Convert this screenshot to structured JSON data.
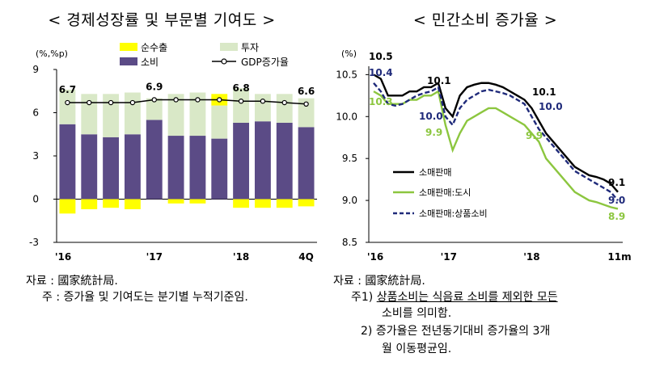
{
  "left_chart": {
    "title": "< 경제성장률 및 부문별 기여도 >",
    "unit": "(%,%p)",
    "legend": {
      "net_exports": "순수출",
      "investment": "투자",
      "consumption": "소비",
      "gdp": "GDP증가율"
    },
    "x_tick_labels": [
      "'16",
      "'17",
      "'18",
      "4Q"
    ],
    "y_tick_labels": [
      "9",
      "6",
      "3",
      "0",
      "-3"
    ],
    "gdp_labels": [
      "6.7",
      "6.9",
      "6.8",
      "6.6"
    ],
    "source": "자료 : 國家統計局.",
    "note": "주 : 증가율 및 기여도는 분기별 누적기준임."
  },
  "right_chart": {
    "title": "< 민간소비 증가율 >",
    "unit": "(%)",
    "legend": {
      "retail": "소매판매",
      "urban": "소매판매:도시",
      "goods": "소매판매:상품소비"
    },
    "x_tick_labels": [
      "'16",
      "'17",
      "'18",
      "11m"
    ],
    "y_tick_labels": [
      "10.5",
      "10.0",
      "9.5",
      "9.0",
      "8.5"
    ],
    "source": "자료 : 國家統計局.",
    "note1_prefix": "주1) ",
    "note1_line1": "상품소비는 식음료 소비를 제외한 모든",
    "note1_line2": "소비를 의미함.",
    "note2_prefix": "2) ",
    "note2_line1": "증가율은 전년동기대비 증가율의 3개",
    "note2_line2": "월 이동평균임."
  },
  "chart_data": [
    {
      "type": "bar",
      "title": "< 경제성장률 및 부문별 기여도 >",
      "ylabel": "(%,%p)",
      "ylim": [
        -3,
        9
      ],
      "yticks": [
        -3,
        0,
        3,
        6,
        9
      ],
      "x_tick_labels": [
        "'16",
        "'17",
        "'18",
        "4Q"
      ],
      "categories": [
        "16Q1",
        "16Q2",
        "16Q3",
        "16Q4",
        "17Q1",
        "17Q2",
        "17Q3",
        "17Q4",
        "18Q1",
        "18Q2",
        "18Q3",
        "18Q4"
      ],
      "stacked": true,
      "colors": {
        "consumption": "#5b4b86",
        "investment": "#d9e8c7",
        "net_exports": "#ffff00",
        "gdp": "#000000"
      },
      "series": [
        {
          "name": "소비",
          "values": [
            5.2,
            4.5,
            4.3,
            4.5,
            5.5,
            4.4,
            4.4,
            4.2,
            5.3,
            5.4,
            5.3,
            5.0
          ]
        },
        {
          "name": "투자",
          "values": [
            2.4,
            2.8,
            3.0,
            2.9,
            1.5,
            2.9,
            3.0,
            2.3,
            2.4,
            1.9,
            2.0,
            2.0
          ]
        },
        {
          "name": "순수출",
          "values": [
            -1.0,
            -0.7,
            -0.6,
            -0.7,
            0.0,
            -0.3,
            -0.3,
            0.8,
            -0.6,
            -0.6,
            -0.6,
            -0.5
          ]
        },
        {
          "name": "GDP증가율",
          "type": "line",
          "values": [
            6.7,
            6.7,
            6.7,
            6.7,
            6.9,
            6.9,
            6.9,
            6.9,
            6.8,
            6.8,
            6.7,
            6.6
          ]
        }
      ],
      "data_labels": [
        {
          "category": "16Q1",
          "value": "6.7"
        },
        {
          "category": "17Q1",
          "value": "6.9"
        },
        {
          "category": "18Q1",
          "value": "6.8"
        },
        {
          "category": "18Q4",
          "value": "6.6"
        }
      ]
    },
    {
      "type": "line",
      "title": "< 민간소비 증가율 >",
      "ylabel": "(%)",
      "ylim": [
        8.5,
        10.6
      ],
      "yticks": [
        8.5,
        9.0,
        9.5,
        10.0,
        10.5
      ],
      "x": [
        0,
        1,
        2,
        3,
        4,
        5,
        6,
        7,
        8,
        9,
        10,
        11,
        12,
        13,
        14,
        15,
        16,
        17,
        18,
        19,
        20,
        21,
        22,
        23,
        24,
        25,
        26,
        27,
        28,
        29,
        30,
        31,
        32,
        33,
        34
      ],
      "x_tick_labels": [
        "'16",
        "'17",
        "'18",
        "11m"
      ],
      "colors": {
        "retail": "#000000",
        "urban": "#8cc63f",
        "goods": "#1f2a7a"
      },
      "series": [
        {
          "name": "소매판매",
          "values": [
            10.5,
            10.45,
            10.25,
            10.25,
            10.25,
            10.3,
            10.3,
            10.35,
            10.35,
            10.4,
            10.1,
            10.0,
            10.25,
            10.35,
            10.38,
            10.4,
            10.4,
            10.38,
            10.35,
            10.3,
            10.25,
            10.2,
            10.1,
            9.95,
            9.8,
            9.7,
            9.6,
            9.5,
            9.4,
            9.35,
            9.3,
            9.28,
            9.25,
            9.2,
            9.1
          ]
        },
        {
          "name": "소매판매:도시",
          "values": [
            10.3,
            10.25,
            10.15,
            10.15,
            10.15,
            10.2,
            10.2,
            10.25,
            10.25,
            10.3,
            9.9,
            9.6,
            9.8,
            9.95,
            10.0,
            10.05,
            10.1,
            10.1,
            10.05,
            10.0,
            9.95,
            9.9,
            9.8,
            9.7,
            9.5,
            9.4,
            9.3,
            9.2,
            9.1,
            9.05,
            9.0,
            8.98,
            8.95,
            8.92,
            8.9
          ]
        },
        {
          "name": "소매판매:상품소비",
          "values": [
            10.4,
            10.3,
            10.15,
            10.13,
            10.15,
            10.2,
            10.25,
            10.28,
            10.3,
            10.35,
            10.0,
            9.9,
            10.1,
            10.2,
            10.25,
            10.3,
            10.32,
            10.3,
            10.28,
            10.25,
            10.2,
            10.15,
            10.0,
            9.85,
            9.75,
            9.65,
            9.55,
            9.45,
            9.35,
            9.3,
            9.25,
            9.2,
            9.15,
            9.1,
            9.0
          ]
        }
      ],
      "data_labels": [
        {
          "series": "소매판매",
          "values": [
            "10.5",
            "10.1",
            "10.1",
            "9.1"
          ]
        },
        {
          "series": "소매판매:도시",
          "values": [
            "10.3",
            "9.9",
            "9.9",
            "8.9"
          ]
        },
        {
          "series": "소매판매:상품소비",
          "values": [
            "10.4",
            "10.0",
            "10.0",
            "9.0"
          ]
        }
      ]
    }
  ]
}
